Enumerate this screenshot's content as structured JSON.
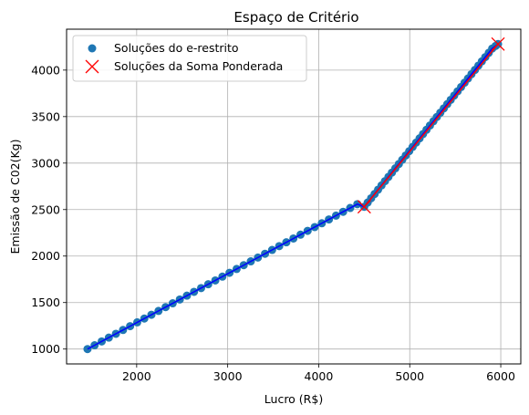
{
  "chart_data": {
    "type": "scatter",
    "title": "Espaço de Critério",
    "xlabel": "Lucro (R$)",
    "ylabel": "Emissão de C02(Kg)",
    "xlim": [
      1230,
      6220
    ],
    "ylim": [
      840,
      4440
    ],
    "xticks": [
      2000,
      3000,
      4000,
      5000,
      6000
    ],
    "yticks": [
      1000,
      1500,
      2000,
      2500,
      3000,
      3500,
      4000
    ],
    "grid": true,
    "legend_position": "top-left",
    "colors": {
      "scatter": "#1f77b4",
      "line": "#0000ff",
      "red": "#ff0000"
    },
    "series": [
      {
        "name": "Soluções do e-restrito",
        "marker": "circle",
        "x": [
          1460,
          1538,
          1616,
          1694,
          1772,
          1850,
          1928,
          2006,
          2084,
          2162,
          2240,
          2318,
          2396,
          2474,
          2552,
          2630,
          2708,
          2786,
          2864,
          2942,
          3020,
          3098,
          3176,
          3254,
          3332,
          3410,
          3488,
          3566,
          3644,
          3722,
          3800,
          3878,
          3956,
          4034,
          4112,
          4190,
          4268,
          4346,
          4424,
          4500,
          4538,
          4576,
          4614,
          4652,
          4690,
          4728,
          4766,
          4804,
          4842,
          4880,
          4918,
          4956,
          4994,
          5032,
          5070,
          5108,
          5146,
          5184,
          5222,
          5260,
          5298,
          5336,
          5374,
          5412,
          5450,
          5488,
          5526,
          5564,
          5602,
          5640,
          5678,
          5716,
          5754,
          5792,
          5830,
          5868,
          5906,
          5944,
          5970
        ],
        "y": [
          1000,
          1041,
          1082,
          1123,
          1164,
          1205,
          1246,
          1287,
          1328,
          1369,
          1410,
          1451,
          1492,
          1533,
          1574,
          1615,
          1656,
          1697,
          1738,
          1779,
          1820,
          1861,
          1902,
          1943,
          1984,
          2025,
          2066,
          2107,
          2148,
          2189,
          2230,
          2271,
          2312,
          2353,
          2394,
          2435,
          2476,
          2517,
          2558,
          2530,
          2576,
          2622,
          2668,
          2714,
          2760,
          2806,
          2852,
          2898,
          2944,
          2990,
          3036,
          3082,
          3128,
          3174,
          3220,
          3266,
          3312,
          3358,
          3404,
          3450,
          3496,
          3542,
          3588,
          3634,
          3680,
          3726,
          3772,
          3818,
          3864,
          3910,
          3956,
          4002,
          4048,
          4094,
          4140,
          4186,
          4232,
          4260,
          4280
        ]
      },
      {
        "name": "Soluções da Soma Ponderada",
        "marker": "x",
        "x": [
          4500,
          5970
        ],
        "y": [
          2530,
          4280
        ]
      }
    ]
  }
}
